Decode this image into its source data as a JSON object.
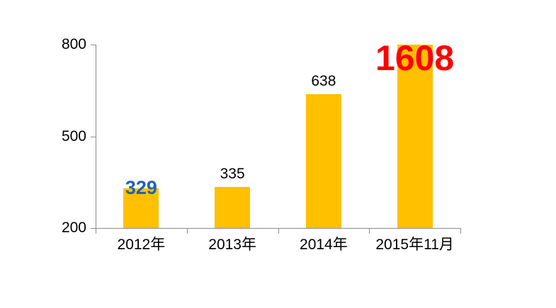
{
  "chart_data": {
    "type": "bar",
    "title": "",
    "xlabel": "",
    "ylabel": "",
    "categories": [
      "2012年",
      "2013年",
      "2014年",
      "2015年11月"
    ],
    "values": [
      329,
      335,
      638,
      1608
    ],
    "ylim": [
      200,
      800
    ],
    "yticks": [
      200,
      500,
      800
    ],
    "grid": false,
    "legend": "none",
    "background_color": "#FFFFFF",
    "bar_color": "#FFC000",
    "axis_color": "#8C8C8C",
    "tick_label_color": "#000000",
    "clip_bars_at_ymax": true,
    "value_labels": [
      {
        "text": "329",
        "color": "#1F63B5",
        "bold": true,
        "font_px": 27,
        "placement": "straddle-top"
      },
      {
        "text": "335",
        "color": "#000000",
        "bold": false,
        "font_px": 21,
        "placement": "above"
      },
      {
        "text": "638",
        "color": "#000000",
        "bold": false,
        "font_px": 21,
        "placement": "above"
      },
      {
        "text": "1608",
        "color": "#FF0000",
        "bold": true,
        "font_px": 50,
        "placement": "inside-top"
      }
    ]
  }
}
